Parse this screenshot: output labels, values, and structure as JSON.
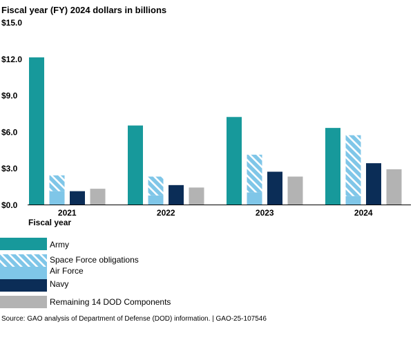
{
  "chart_data": {
    "type": "bar",
    "ylabel": "Fiscal year (FY) 2024 dollars in billions",
    "xlabel": "Fiscal year",
    "categories": [
      "2021",
      "2022",
      "2023",
      "2024"
    ],
    "ylim": [
      0,
      15
    ],
    "yticks": [
      0,
      3,
      6,
      9,
      12,
      15
    ],
    "ytick_labels": [
      "$0.0",
      "$3.0",
      "$6.0",
      "$9.0",
      "$12.0",
      "$15.0"
    ],
    "grid": false,
    "legend_position": "bottom",
    "series": [
      {
        "name": "Army",
        "values": [
          12.1,
          6.5,
          7.2,
          6.3
        ],
        "color": "#17999b"
      },
      {
        "name": "Air Force",
        "values": [
          1.1,
          0.75,
          1.0,
          0.7
        ],
        "color": "#7fc6e8",
        "stack_base": true
      },
      {
        "name": "Space Force obligations",
        "values": [
          1.3,
          1.55,
          3.1,
          5.0
        ],
        "color": "#7fc6e8",
        "pattern": "hatch",
        "stacked_on": "Air Force"
      },
      {
        "name": "Navy",
        "values": [
          1.1,
          1.6,
          2.7,
          3.4
        ],
        "color": "#0b2d57"
      },
      {
        "name": "Remaining 14 DOD Components",
        "values": [
          1.3,
          1.4,
          2.3,
          2.9
        ],
        "color": "#b3b3b3"
      }
    ]
  },
  "legend": [
    {
      "label": "Army",
      "color": "#17999b",
      "pattern": "solid"
    },
    {
      "label": "Space Force obligations",
      "color": "#7fc6e8",
      "pattern": "hatch"
    },
    {
      "label": "Air Force",
      "color": "#7fc6e8",
      "pattern": "solid"
    },
    {
      "label": "Navy",
      "color": "#0b2d57",
      "pattern": "solid"
    },
    {
      "label": "Remaining 14 DOD Components",
      "color": "#b3b3b3",
      "pattern": "solid"
    }
  ],
  "source": "Source: GAO analysis of Department of Defense (DOD) information.  |  GAO-25-107546"
}
